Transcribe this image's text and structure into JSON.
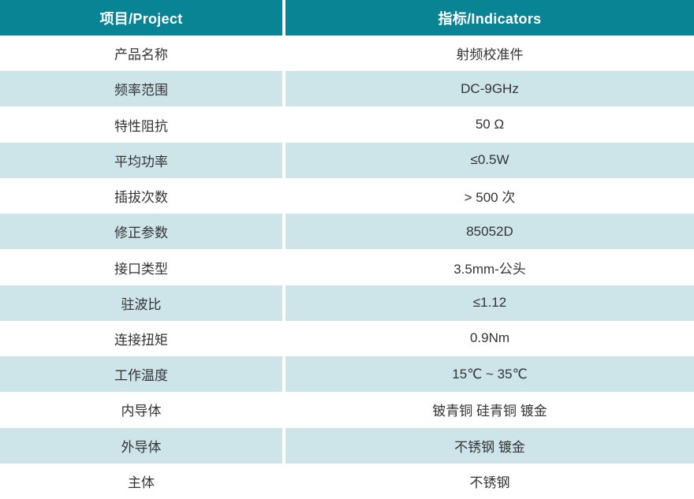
{
  "table": {
    "colors": {
      "header_bg": "#088494",
      "alt_row_bg": "#cde5e9",
      "header_text": "#ffffff",
      "body_text": "#333333"
    },
    "header": {
      "col1": "项目/Project",
      "col2": "指标/Indicators"
    },
    "rows": [
      {
        "label": "产品名称",
        "value": "射频校准件"
      },
      {
        "label": "频率范围",
        "value": "DC-9GHz"
      },
      {
        "label": "特性阻抗",
        "value": "50 Ω"
      },
      {
        "label": "平均功率",
        "value": "≤0.5W"
      },
      {
        "label": "插拔次数",
        "value": "> 500 次"
      },
      {
        "label": "修正参数",
        "value": "85052D"
      },
      {
        "label": "接口类型",
        "value": "3.5mm-公头"
      },
      {
        "label": "驻波比",
        "value": "≤1.12"
      },
      {
        "label": "连接扭矩",
        "value": "0.9Nm"
      },
      {
        "label": "工作温度",
        "value": "15℃ ~ 35℃"
      },
      {
        "label": "内导体",
        "value": "铍青铜 硅青铜 镀金"
      },
      {
        "label": "外导体",
        "value": "不锈钢 镀金"
      },
      {
        "label": "主体",
        "value": "不锈钢"
      }
    ]
  }
}
